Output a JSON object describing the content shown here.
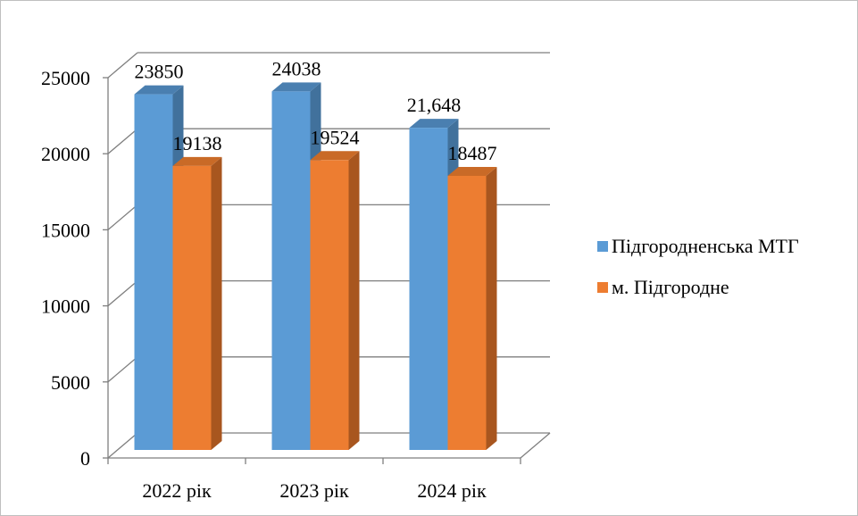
{
  "chart_data": {
    "type": "bar",
    "categories": [
      "2022 рік",
      "2023 рік",
      "2024 рік"
    ],
    "series": [
      {
        "name": "Підгородненська МТГ",
        "values": [
          23850,
          24038,
          21648
        ],
        "labels": [
          "23850",
          "24038",
          "21,648"
        ],
        "color": "#5b9bd5",
        "side_color": "#41719c",
        "top_color": "#4a7fb0"
      },
      {
        "name": "м. Підгородне",
        "values": [
          19138,
          19524,
          18487
        ],
        "labels": [
          "19138",
          "19524",
          "18487"
        ],
        "color": "#ed7d31",
        "side_color": "#a8561f",
        "top_color": "#c96a27"
      }
    ],
    "yticks": [
      0,
      5000,
      10000,
      15000,
      20000,
      25000
    ],
    "ylim": [
      0,
      25000
    ],
    "grid": true,
    "legend_position": "right",
    "style": "3d-clustered-column"
  }
}
